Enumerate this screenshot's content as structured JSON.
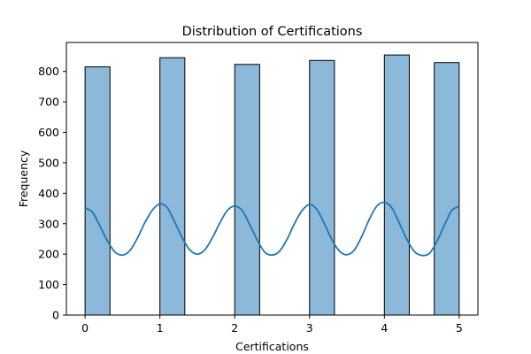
{
  "chart_data": {
    "type": "bar",
    "title": "Distribution of Certifications",
    "xlabel": "Certifications",
    "ylabel": "Frequency",
    "xlim": [
      -0.25,
      5.25
    ],
    "ylim": [
      0,
      895
    ],
    "x_ticks": [
      0,
      1,
      2,
      3,
      4,
      5
    ],
    "y_ticks": [
      0,
      100,
      200,
      300,
      400,
      500,
      600,
      700,
      800
    ],
    "grid": false,
    "bars": [
      {
        "x0": 0.0,
        "x1": 0.333,
        "value": 815
      },
      {
        "x0": 1.0,
        "x1": 1.333,
        "value": 845
      },
      {
        "x0": 2.0,
        "x1": 2.333,
        "value": 823
      },
      {
        "x0": 3.0,
        "x1": 3.333,
        "value": 836
      },
      {
        "x0": 4.0,
        "x1": 4.333,
        "value": 854
      },
      {
        "x0": 4.667,
        "x1": 5.0,
        "value": 829
      }
    ],
    "kde_curve": {
      "x": [
        0.0,
        0.1,
        0.2,
        0.3,
        0.4,
        0.5,
        0.6,
        0.7,
        0.8,
        0.9,
        1.0,
        1.1,
        1.2,
        1.3,
        1.4,
        1.5,
        1.6,
        1.7,
        1.8,
        1.9,
        2.0,
        2.1,
        2.2,
        2.3,
        2.4,
        2.5,
        2.6,
        2.7,
        2.8,
        2.9,
        3.0,
        3.1,
        3.2,
        3.3,
        3.4,
        3.5,
        3.6,
        3.7,
        3.8,
        3.9,
        4.0,
        4.1,
        4.2,
        4.3,
        4.4,
        4.5,
        4.6,
        4.7,
        4.8,
        4.9,
        5.0
      ],
      "y": [
        352,
        337,
        292,
        243,
        207,
        197,
        212,
        253,
        304,
        345,
        365,
        352,
        304,
        253,
        214,
        200,
        214,
        253,
        302,
        343,
        358,
        343,
        297,
        247,
        207,
        197,
        210,
        249,
        301,
        343,
        363,
        346,
        299,
        247,
        210,
        198,
        214,
        259,
        315,
        358,
        370,
        352,
        302,
        249,
        209,
        196,
        202,
        240,
        294,
        343,
        357
      ]
    },
    "colors": {
      "bar_fill": "#8cb8da",
      "bar_edge": "#000000",
      "kde_line": "#1f77b4"
    }
  }
}
